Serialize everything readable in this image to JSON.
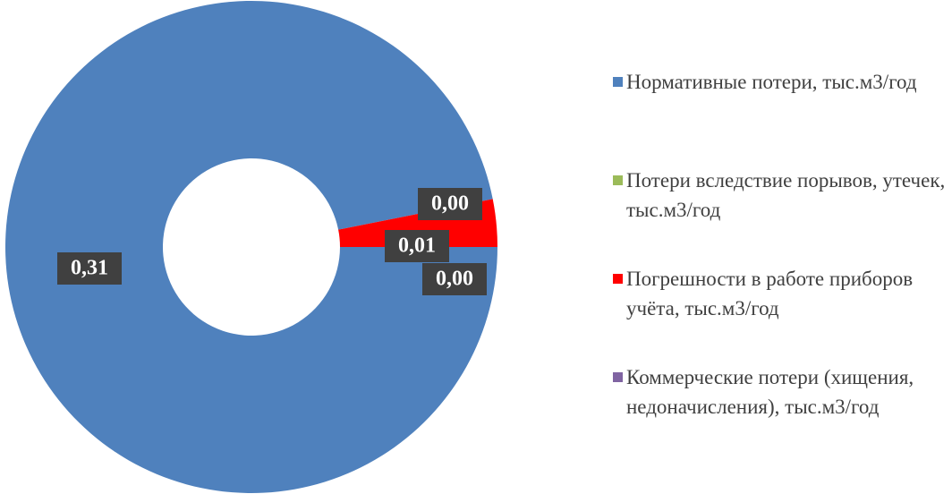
{
  "chart_data": {
    "type": "donut",
    "categories": [
      "Нормативные потери, тыс.м3/год",
      "Потери вследствие порывов, утечек, тыс.м3/год",
      "Погрешности в работе приборов учёта, тыс.м3/год",
      "Коммерческие потери (хищения, недоначисления), тыс.м3/год"
    ],
    "values": [
      0.31,
      0.0,
      0.01,
      0.0
    ],
    "value_labels": [
      "0,31",
      "0,00",
      "0,01",
      "0,00"
    ],
    "colors": [
      "#4f81bd",
      "#9bbb59",
      "#ff0000",
      "#8064a2"
    ],
    "legend": "right"
  }
}
